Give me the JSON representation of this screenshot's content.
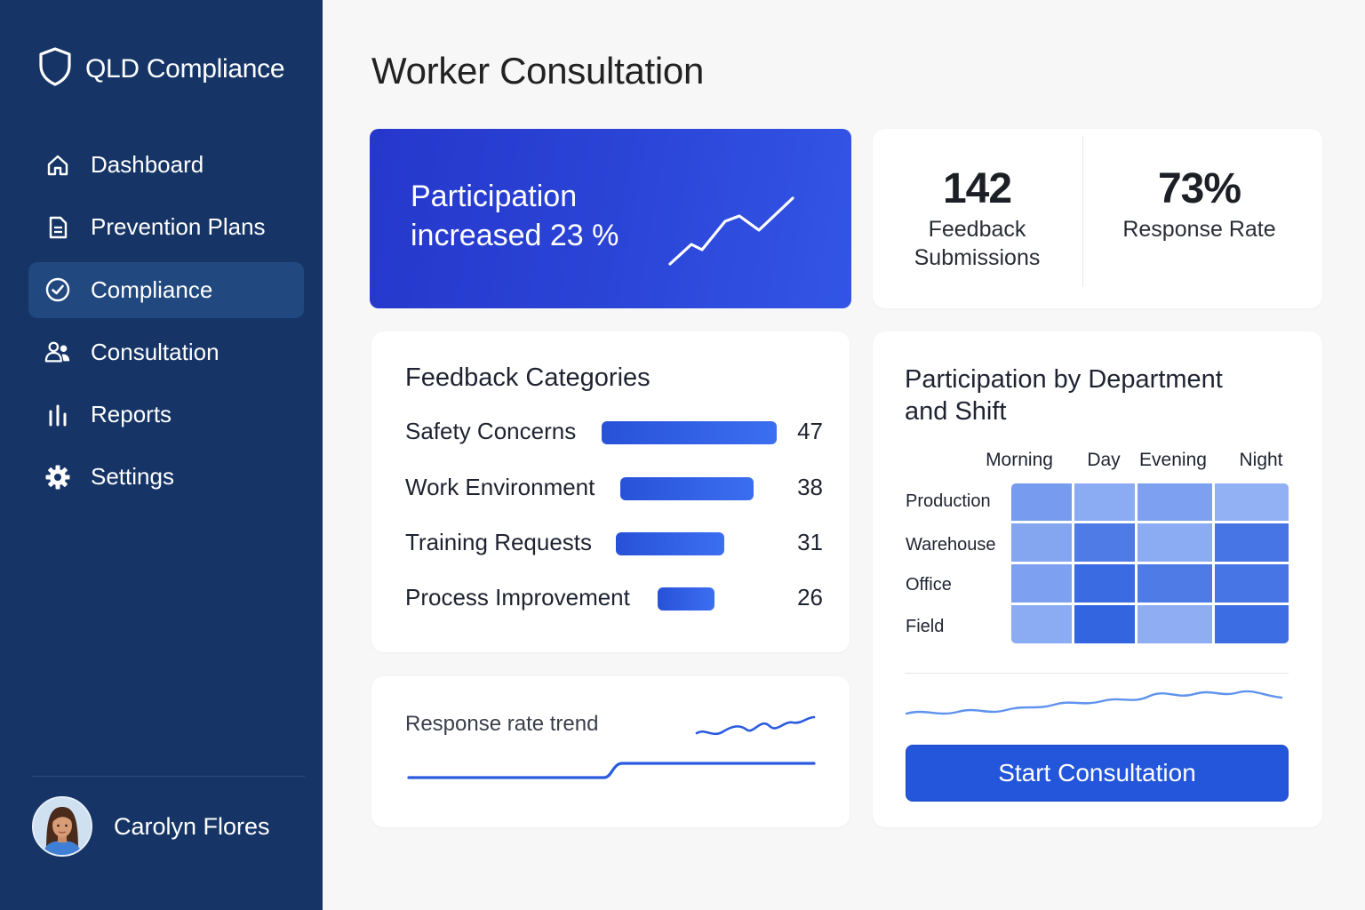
{
  "app": {
    "brand": "QLD Compliance"
  },
  "sidebar": {
    "items": [
      {
        "label": "Dashboard",
        "icon": "home-icon"
      },
      {
        "label": "Prevention Plans",
        "icon": "document-icon"
      },
      {
        "label": "Compliance",
        "icon": "check-circle-icon",
        "active": true
      },
      {
        "label": "Consultation",
        "icon": "users-icon"
      },
      {
        "label": "Reports",
        "icon": "bar-chart-icon"
      },
      {
        "label": "Settings",
        "icon": "gear-icon"
      }
    ],
    "user": {
      "name": "Carolyn Flores"
    }
  },
  "header": {
    "title": "Worker Consultation"
  },
  "hero": {
    "line1": "Participation",
    "line2": "increased 23 %"
  },
  "stats": {
    "feedback": {
      "value": "142",
      "label_line1": "Feedback",
      "label_line2": "Submissions"
    },
    "response": {
      "value": "73%",
      "label": "Response Rate"
    }
  },
  "categories": {
    "title": "Feedback Categories",
    "rows": [
      {
        "label": "Safety Concerns",
        "value": "47"
      },
      {
        "label": "Work Environment",
        "value": "38"
      },
      {
        "label": "Training Requests",
        "value": "31"
      },
      {
        "label": "Process Improvement",
        "value": "26"
      }
    ]
  },
  "trend": {
    "label": "Response rate trend"
  },
  "heatmap": {
    "title_line1": "Participation by Department",
    "title_line2": "and Shift",
    "columns": [
      "Morning",
      "Day",
      "Evening",
      "Night"
    ],
    "rows": [
      "Production",
      "Warehouse",
      "Office",
      "Field"
    ],
    "levels": [
      [
        0.45,
        0.3,
        0.4,
        0.25
      ],
      [
        0.35,
        0.75,
        0.3,
        0.8
      ],
      [
        0.4,
        0.9,
        0.75,
        0.8
      ],
      [
        0.3,
        0.95,
        0.28,
        0.88
      ]
    ],
    "colors": {
      "low": "#b4cbfb",
      "high": "#2c60df"
    }
  },
  "actions": {
    "start_label": "Start Consultation"
  },
  "theme": {
    "sidebar": "#163566",
    "accent": "#2456dc"
  }
}
